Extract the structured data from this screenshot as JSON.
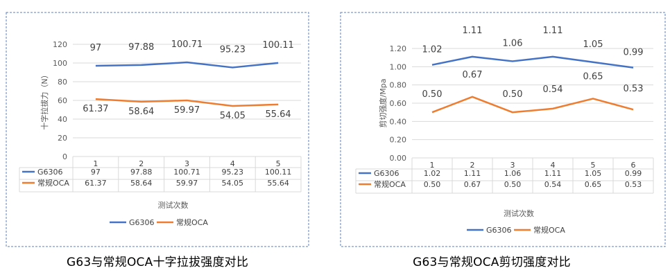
{
  "chart_data": [
    {
      "type": "line",
      "title": "",
      "caption": "G63与常规OCA十字拉拔强度对比",
      "xlabel": "测试次数",
      "ylabel": "十字拉拔力（N）",
      "categories": [
        "1",
        "2",
        "3",
        "4",
        "5"
      ],
      "ylim": [
        0,
        120
      ],
      "yticks": [
        "0",
        "20",
        "40",
        "60",
        "80",
        "100",
        "120"
      ],
      "grid": true,
      "legend": "bottom",
      "data_table": true,
      "series": [
        {
          "name": "G6306",
          "color": "#4472C4",
          "values": [
            97,
            97.88,
            100.71,
            95.23,
            100.11
          ],
          "labels": [
            "97",
            "97.88",
            "100.71",
            "95.23",
            "100.11"
          ]
        },
        {
          "name": "常规OCA",
          "color": "#ED7D31",
          "values": [
            61.37,
            58.64,
            59.97,
            54.05,
            55.64
          ],
          "labels": [
            "61.37",
            "58.64",
            "59.97",
            "54.05",
            "55.64"
          ]
        }
      ]
    },
    {
      "type": "line",
      "title": "",
      "caption": "G63与常规OCA剪切强度对比",
      "xlabel": "测试次数",
      "ylabel": "剪切强度/Mpa",
      "categories": [
        "1",
        "2",
        "3",
        "4",
        "5",
        "6"
      ],
      "ylim": [
        0,
        1.2
      ],
      "yticks": [
        "0.00",
        "0.20",
        "0.40",
        "0.60",
        "0.80",
        "1.00",
        "1.20"
      ],
      "grid": true,
      "legend": "bottom",
      "data_table": true,
      "series": [
        {
          "name": "G6306",
          "color": "#4472C4",
          "values": [
            1.02,
            1.11,
            1.06,
            1.11,
            1.05,
            0.99
          ],
          "labels": [
            "1.02",
            "1.11",
            "1.06",
            "1.11",
            "1.05",
            "0.99"
          ]
        },
        {
          "name": "常规OCA",
          "color": "#ED7D31",
          "values": [
            0.5,
            0.67,
            0.5,
            0.54,
            0.65,
            0.53
          ],
          "labels": [
            "0.50",
            "0.67",
            "0.50",
            "0.54",
            "0.65",
            "0.53"
          ]
        }
      ]
    }
  ]
}
